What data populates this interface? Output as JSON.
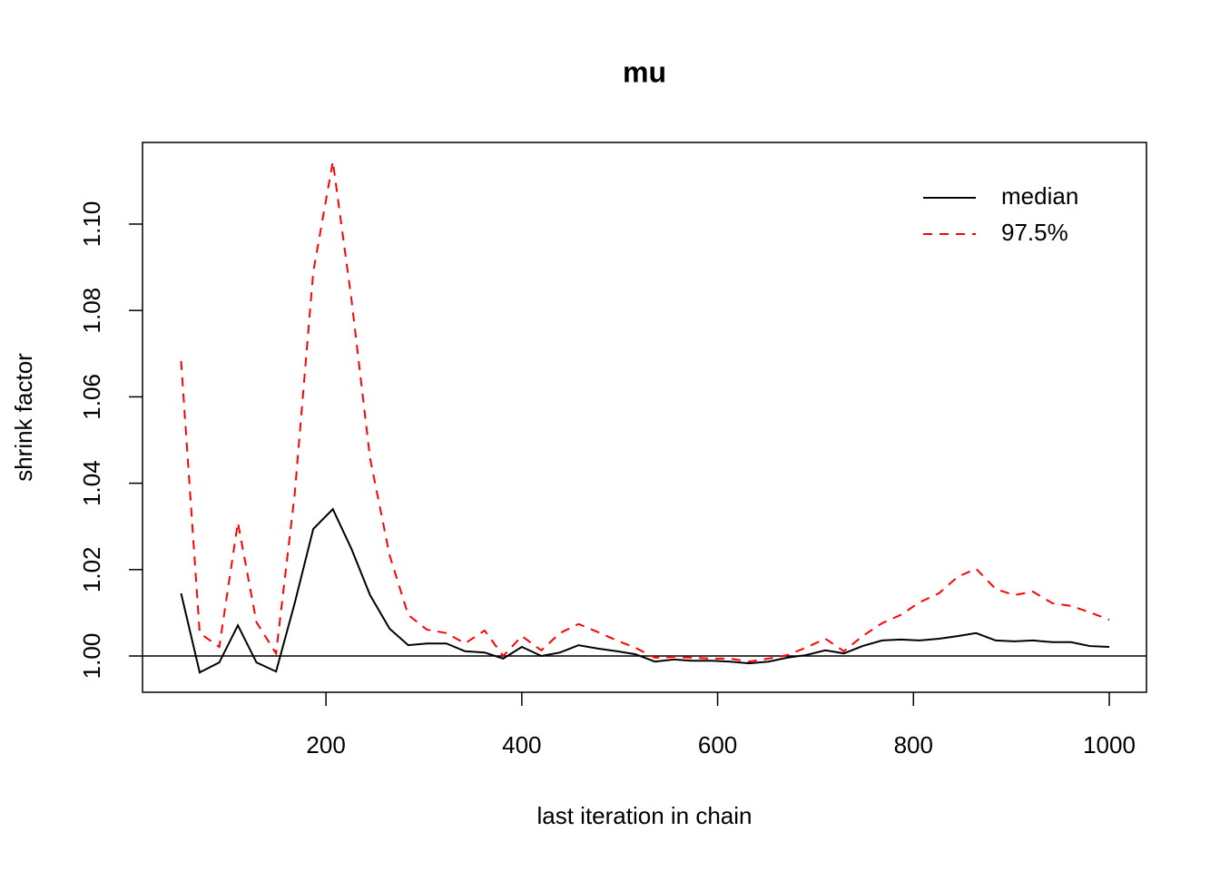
{
  "chart_data": {
    "type": "line",
    "title": "mu",
    "x_label": "last iteration in chain",
    "y_label": "shrink factor",
    "x": [
      52,
      71,
      91,
      110,
      129,
      149,
      168,
      187,
      207,
      226,
      245,
      265,
      284,
      303,
      323,
      342,
      362,
      381,
      400,
      420,
      439,
      458,
      478,
      497,
      516,
      536,
      555,
      574,
      594,
      613,
      632,
      652,
      671,
      690,
      710,
      729,
      748,
      768,
      787,
      806,
      826,
      845,
      864,
      884,
      903,
      922,
      942,
      961,
      980,
      1000
    ],
    "series": [
      {
        "name": "median",
        "color": "#000000",
        "linestyle": "solid",
        "values": [
          1.0145,
          0.9962,
          0.9985,
          1.0071,
          0.9985,
          0.9964,
          1.0122,
          1.0294,
          1.034,
          1.0248,
          1.0141,
          1.0063,
          1.0025,
          1.0029,
          1.0029,
          1.0011,
          1.0008,
          0.9994,
          1.0021,
          1.0,
          1.0008,
          1.0025,
          1.0017,
          1.0011,
          1.0004,
          0.9987,
          0.9992,
          0.9989,
          0.9989,
          0.9987,
          0.9983,
          0.9987,
          0.9996,
          1.0002,
          1.0013,
          1.0006,
          1.0023,
          1.0036,
          1.0038,
          1.0036,
          1.004,
          1.0046,
          1.0053,
          1.0036,
          1.0034,
          1.0036,
          1.0032,
          1.0032,
          1.0023,
          1.0021
        ]
      },
      {
        "name": "97.5%",
        "color": "#ff0000",
        "linestyle": "dashed",
        "values": [
          1.0683,
          1.0053,
          1.0021,
          1.0309,
          1.0078,
          1.0006,
          1.0374,
          1.0889,
          1.1145,
          1.0826,
          1.0458,
          1.0233,
          1.0095,
          1.0061,
          1.0053,
          1.0029,
          1.0059,
          1.0,
          1.0046,
          1.0013,
          1.0053,
          1.0074,
          1.0055,
          1.0036,
          1.0019,
          0.9996,
          0.9998,
          0.9996,
          0.9994,
          0.9994,
          0.9987,
          0.9994,
          1.0002,
          1.0019,
          1.004,
          1.0011,
          1.0046,
          1.0076,
          1.0095,
          1.0124,
          1.0145,
          1.0183,
          1.0202,
          1.0155,
          1.0141,
          1.0149,
          1.0122,
          1.0116,
          1.0101,
          1.0084
        ]
      }
    ],
    "reference_line": 1,
    "xlim": [
      12.6,
      1038
    ],
    "ylim": [
      0.9916,
      1.1189
    ],
    "xticks": [
      200,
      400,
      600,
      800,
      1000
    ],
    "yticks": [
      {
        "value": 1,
        "label": "1.00"
      },
      1.02,
      1.04,
      1.06,
      1.08,
      {
        "value": 1.1,
        "label": "1.10"
      }
    ],
    "legend": "topright",
    "grid": false
  }
}
